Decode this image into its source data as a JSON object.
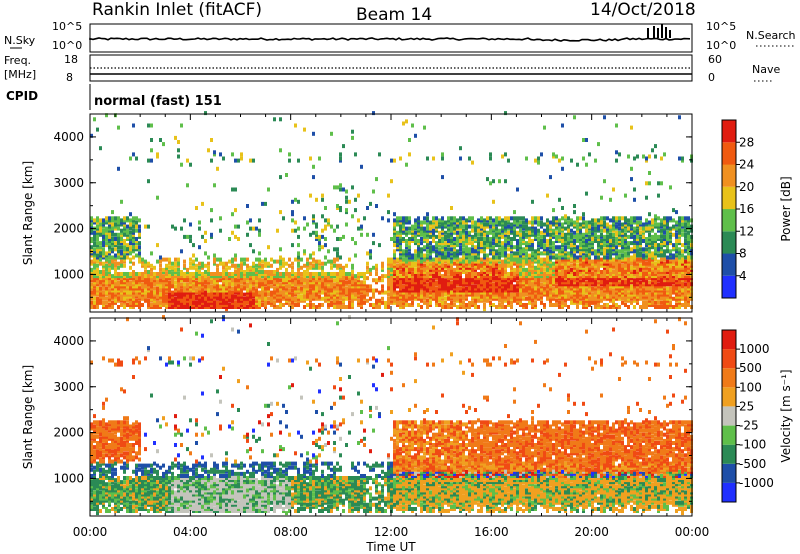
{
  "header": {
    "station": "Rankin Inlet (fitACF)",
    "beam": "Beam 14",
    "date": "14/Oct/2018"
  },
  "summary_panel": {
    "nsky_label": "N.Sky",
    "nsky_ticks": [
      "10^5",
      "10^0"
    ],
    "nsearch_label": "N.Search",
    "nsearch_ticks": [
      "10^5",
      "10^0"
    ],
    "freq_label": "Freq.",
    "freq_unit": "[MHz]",
    "freq_ticks": [
      "18",
      "8"
    ],
    "nave_label": "Nave",
    "nave_ticks": [
      "60",
      "0"
    ],
    "cpid_label": "CPID",
    "cpid_value": "normal (fast) 151"
  },
  "colors": {
    "power": [
      "#2030ff",
      "#1e4fa8",
      "#2b8a55",
      "#5fbf4a",
      "#e8c21a",
      "#f09020",
      "#f05a10",
      "#e01c10"
    ],
    "velocity": [
      "#e01c10",
      "#f04a14",
      "#f07a18",
      "#f0a020",
      "#c4c4bc",
      "#5fbf4a",
      "#2b8a55",
      "#1e4fa8",
      "#2030ff"
    ]
  },
  "chart_data": [
    {
      "type": "heatmap",
      "title": "",
      "xlabel": "",
      "ylabel": "Slant Range [km]",
      "xlim": [
        "00:00",
        "24:00"
      ],
      "ylim": [
        180,
        4500
      ],
      "x_ticks": [
        "00:00",
        "04:00",
        "08:00",
        "12:00",
        "16:00",
        "20:00",
        "00:00"
      ],
      "y_ticks": [
        "1000",
        "2000",
        "3000",
        "4000"
      ],
      "colorbar": {
        "label": "Power [dB]",
        "ticks": [
          "4",
          "8",
          "12",
          "16",
          "20",
          "24",
          "28"
        ],
        "range": [
          0,
          30
        ]
      },
      "grid": false
    },
    {
      "type": "heatmap",
      "title": "",
      "xlabel": "Time UT",
      "ylabel": "Slant Range [km]",
      "xlim": [
        "00:00",
        "24:00"
      ],
      "ylim": [
        180,
        4500
      ],
      "x_ticks": [
        "00:00",
        "04:00",
        "08:00",
        "12:00",
        "16:00",
        "20:00",
        "00:00"
      ],
      "y_ticks": [
        "1000",
        "2000",
        "3000",
        "4000"
      ],
      "colorbar": {
        "label": "Velocity [m s⁻¹]",
        "ticks": [
          "1000",
          "500",
          "100",
          "25",
          "-25",
          "-100",
          "-500",
          "-1000"
        ]
      },
      "grid": false
    }
  ]
}
